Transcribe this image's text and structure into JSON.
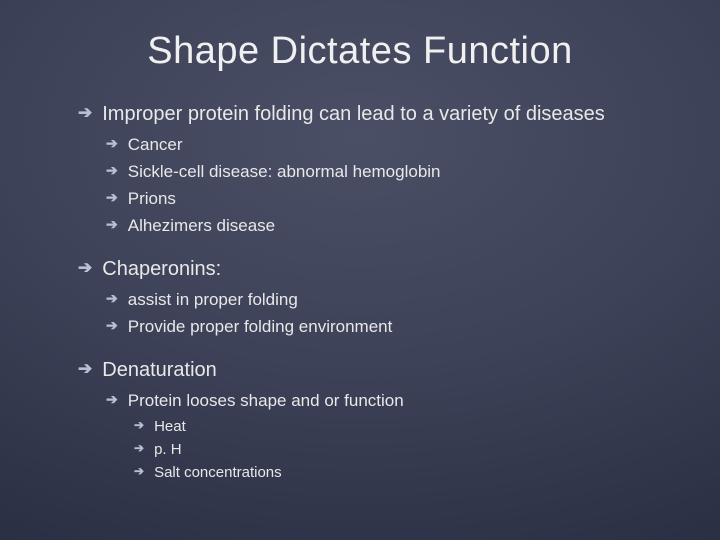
{
  "title": "Shape Dictates Function",
  "bullets": {
    "b1": "Improper protein folding can lead to a variety of diseases",
    "b1a": "Cancer",
    "b1b": "Sickle-cell disease: abnormal hemoglobin",
    "b1c": "Prions",
    "b1d": "Alhezimers disease",
    "b2": "Chaperonins:",
    "b2a": "assist in proper folding",
    "b2b": "Provide proper folding environment",
    "b3": "Denaturation",
    "b3a": "Protein looses shape and or function",
    "b3a1": "Heat",
    "b3a2": "p. H",
    "b3a3": "Salt concentrations"
  },
  "style": {
    "background_gradient_center": "#4a4f66",
    "background_gradient_edge": "#1f2235",
    "text_color": "#e8e8e8",
    "arrow_color": "#b8bed4",
    "title_fontsize": 38,
    "lvl1_fontsize": 20,
    "lvl2_fontsize": 17,
    "lvl3_fontsize": 15,
    "font_family": "Arial"
  }
}
